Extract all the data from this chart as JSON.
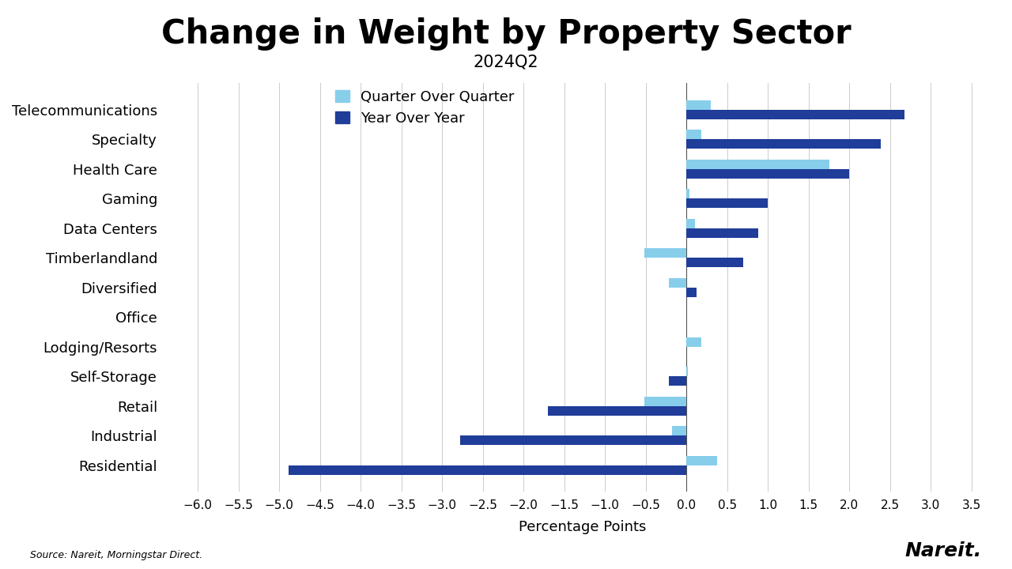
{
  "title": "Change in Weight by Property Sector",
  "subtitle": "2024Q2",
  "xlabel": "Percentage Points",
  "categories": [
    "Telecommunications",
    "Specialty",
    "Health Care",
    "Gaming",
    "Data Centers",
    "Timberlandland",
    "Diversified",
    "Office",
    "Lodging/Resorts",
    "Self-Storage",
    "Retail",
    "Industrial",
    "Residential"
  ],
  "qoq": [
    0.3,
    0.18,
    1.75,
    0.04,
    0.1,
    -0.52,
    -0.22,
    0.0,
    0.18,
    0.02,
    -0.52,
    -0.18,
    0.38
  ],
  "yoy": [
    2.68,
    2.38,
    2.0,
    1.0,
    0.88,
    0.7,
    0.12,
    0.0,
    0.0,
    -0.22,
    -1.7,
    -2.78,
    -4.88
  ],
  "color_qoq": "#87CEEB",
  "color_yoy": "#1f3d99",
  "xlim_min": -6.4,
  "xlim_max": 3.85,
  "xtick_vals": [
    -6.0,
    -5.5,
    -5.0,
    -4.5,
    -4.0,
    -3.5,
    -3.0,
    -2.5,
    -2.0,
    -1.5,
    -1.0,
    -0.5,
    0.0,
    0.5,
    1.0,
    1.5,
    2.0,
    2.5,
    3.0,
    3.5
  ],
  "source_text": "Source: Nareit, Morningstar Direct.",
  "nareit_text": "Nareit.",
  "bg_color": "#ffffff",
  "title_fontsize": 30,
  "subtitle_fontsize": 15,
  "axis_label_fontsize": 13,
  "tick_fontsize": 11,
  "ytick_fontsize": 13,
  "legend_fontsize": 13,
  "bar_height": 0.32
}
